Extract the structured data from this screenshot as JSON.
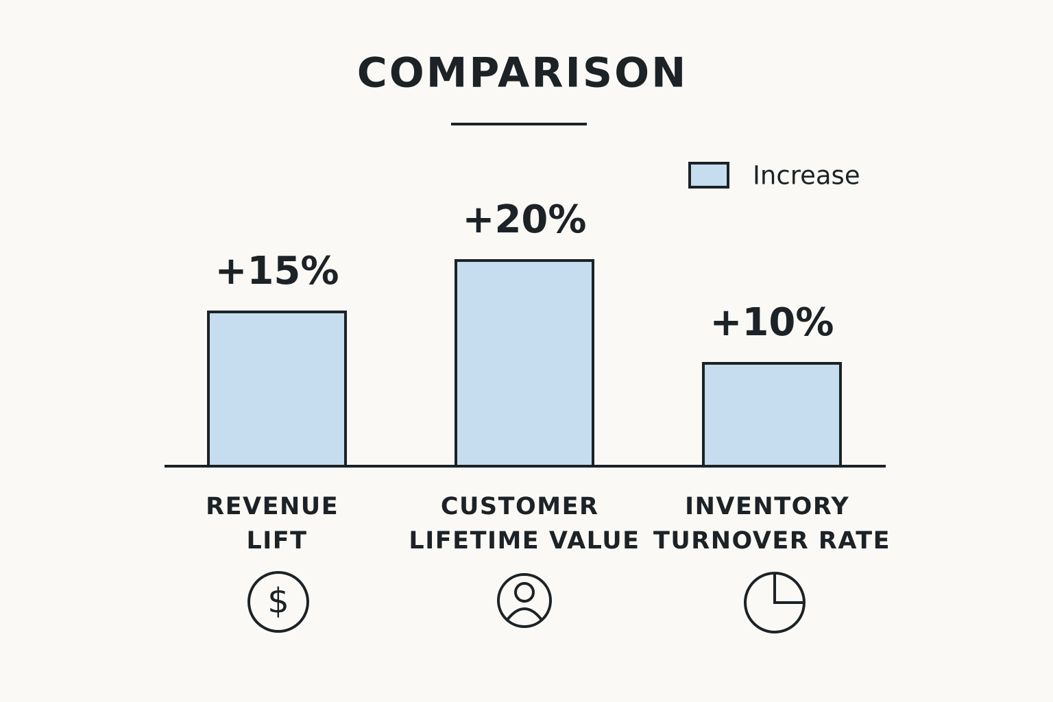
{
  "chart_data": {
    "type": "bar",
    "title": "COMPARISON",
    "categories": [
      "REVENUE LIFT",
      "CUSTOMER LIFETIME VALUE",
      "INVENTORY TURNOVER RATE"
    ],
    "series": [
      {
        "name": "Increase",
        "color": "#c5ddee",
        "values": [
          15,
          20,
          10
        ],
        "value_labels": [
          "+15%",
          "+20%",
          "+10%"
        ]
      }
    ],
    "legend": "top-right"
  }
}
